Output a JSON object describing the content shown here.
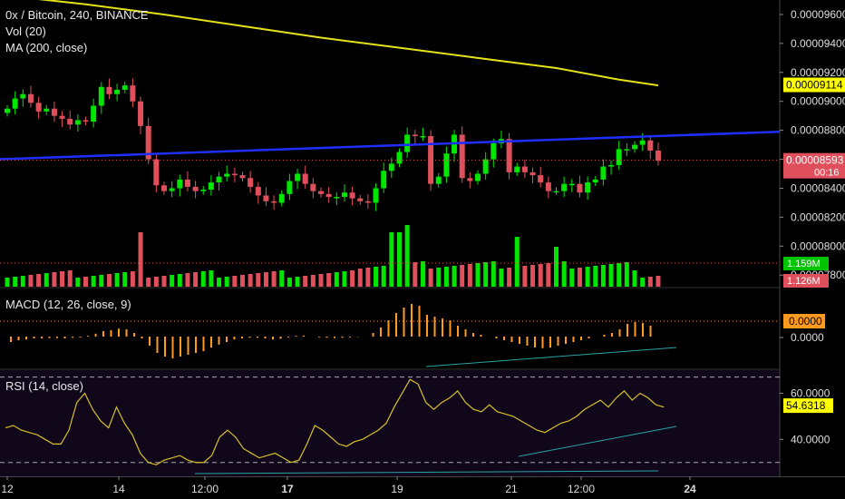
{
  "header": {
    "symbol_line": "0x / Bitcoin, 240, BINANCE",
    "vol_label": "Vol (20)",
    "ma_label": "MA (200, close)"
  },
  "macd_label": "MACD (12, 26, close, 9)",
  "rsi_label": "RSI (14, close)",
  "colors": {
    "up": "#00e600",
    "down": "#e0505c",
    "ma": "#e6e21a",
    "trendline": "#1f2fff",
    "macd_hist": "#ff9a1f",
    "rsi": "#d8c02a",
    "rsi_trend": "#29a3a3",
    "price_tag": "#e0505c",
    "ma_tag": "#ffff00",
    "macd_tag": "#ff9a1f",
    "rsi_tag": "#ffff00",
    "vol_up_tag": "#00c400",
    "vol_down_tag": "#e0505c"
  },
  "price_axis": {
    "ticks": [
      "0.00009600",
      "0.00009400",
      "0.00009200",
      "0.00009000",
      "0.00008800",
      "0.00008600",
      "0.00008400",
      "0.00008200",
      "0.00008000",
      "0.00007800"
    ],
    "ma_tag": "0.00009114",
    "last_price_tag": "0.00008593",
    "countdown": "00:16",
    "vol_tag_up": "1.159M",
    "vol_tag_down": "1.126M"
  },
  "macd_axis": {
    "ticks": [
      "0.0000"
    ],
    "value_tag": "0.0000"
  },
  "rsi_axis": {
    "ticks": [
      "60.0000",
      "40.0000"
    ],
    "value_tag": "54.6318"
  },
  "time_axis": {
    "labels": [
      "12",
      "14",
      "12:00",
      "17",
      "19",
      "21",
      "12:00",
      "24"
    ]
  },
  "chart_data": {
    "type": "candlestick",
    "panes": [
      "price_volume",
      "macd",
      "rsi"
    ],
    "symbol": "0x / Bitcoin",
    "interval": "240",
    "exchange": "BINANCE",
    "x_labels": [
      "12",
      "14",
      "12:00",
      "17",
      "19",
      "21",
      "12:00",
      "24"
    ],
    "price_ylim": [
      7.72e-05,
      9.7e-05
    ],
    "close_series_approx": [
      8.95e-05,
      9.02e-05,
      9.05e-05,
      8.99e-05,
      8.93e-05,
      8.95e-05,
      8.9e-05,
      8.88e-05,
      8.84e-05,
      8.87e-05,
      8.86e-05,
      8.97e-05,
      9.1e-05,
      9.05e-05,
      9.08e-05,
      9.11e-05,
      9e-05,
      8.83e-05,
      8.6e-05,
      8.42e-05,
      8.38e-05,
      8.4e-05,
      8.46e-05,
      8.41e-05,
      8.38e-05,
      8.39e-05,
      8.44e-05,
      8.48e-05,
      8.5e-05,
      8.49e-05,
      8.47e-05,
      8.41e-05,
      8.35e-05,
      8.31e-05,
      8.3e-05,
      8.36e-05,
      8.45e-05,
      8.5e-05,
      8.43e-05,
      8.38e-05,
      8.36e-05,
      8.34e-05,
      8.34e-05,
      8.37e-05,
      8.33e-05,
      8.31e-05,
      8.3e-05,
      8.4e-05,
      8.52e-05,
      8.57e-05,
      8.65e-05,
      8.77e-05,
      8.76e-05,
      8.76e-05,
      8.43e-05,
      8.48e-05,
      8.64e-05,
      8.77e-05,
      8.47e-05,
      8.45e-05,
      8.5e-05,
      8.6e-05,
      8.71e-05,
      8.74e-05,
      8.51e-05,
      8.55e-05,
      8.51e-05,
      8.49e-05,
      8.44e-05,
      8.38e-05,
      8.38e-05,
      8.43e-05,
      8.43e-05,
      8.37e-05,
      8.44e-05,
      8.46e-05,
      8.55e-05,
      8.56e-05,
      8.67e-05,
      8.67e-05,
      8.7e-05,
      8.73e-05,
      8.66e-05,
      8.59e-05
    ],
    "volume_ylim": [
      0,
      1900000
    ],
    "volume_last": 1159000,
    "ma200_approx": [
      {
        "x": 0,
        "y": 9.73e-05
      },
      {
        "x": 10,
        "y": 9.67e-05
      },
      {
        "x": 20,
        "y": 9.6e-05
      },
      {
        "x": 30,
        "y": 9.52e-05
      },
      {
        "x": 40,
        "y": 9.44e-05
      },
      {
        "x": 50,
        "y": 9.37e-05
      },
      {
        "x": 60,
        "y": 9.3e-05
      },
      {
        "x": 70,
        "y": 9.23e-05
      },
      {
        "x": 78,
        "y": 9.15e-05
      },
      {
        "x": 83,
        "y": 9.11e-05
      }
    ],
    "trendline": {
      "x0": 0,
      "y0": 8.6e-05,
      "x1": 94,
      "y1": 8.79e-05
    },
    "macd_hist_approx": [
      -0.15,
      -0.1,
      -0.08,
      -0.05,
      -0.05,
      -0.04,
      -0.04,
      -0.05,
      -0.03,
      -0.02,
      0.02,
      0.08,
      0.15,
      0.18,
      0.22,
      0.2,
      0.1,
      -0.05,
      -0.25,
      -0.45,
      -0.55,
      -0.6,
      -0.55,
      -0.5,
      -0.45,
      -0.4,
      -0.3,
      -0.22,
      -0.15,
      -0.08,
      -0.05,
      -0.03,
      -0.03,
      -0.05,
      -0.08,
      -0.06,
      -0.02,
      0.02,
      0.03,
      0.0,
      -0.02,
      -0.03,
      -0.04,
      -0.03,
      -0.02,
      -0.01,
      0.0,
      0.1,
      0.25,
      0.45,
      0.65,
      0.8,
      0.9,
      0.85,
      0.6,
      0.55,
      0.5,
      0.45,
      0.3,
      0.2,
      0.1,
      0.05,
      0.0,
      -0.05,
      -0.1,
      -0.15,
      -0.2,
      -0.25,
      -0.3,
      -0.32,
      -0.3,
      -0.25,
      -0.2,
      -0.15,
      -0.1,
      -0.05,
      0.0,
      0.05,
      0.1,
      0.2,
      0.35,
      0.4,
      0.38,
      0.3
    ],
    "rsi_ylim": [
      24,
      70
    ],
    "rsi_upper": 67,
    "rsi_lower": 30,
    "rsi_approx": [
      45,
      46,
      44,
      43,
      42,
      40,
      38,
      38,
      44,
      56,
      60,
      53,
      48,
      45,
      54,
      47,
      42,
      34,
      30,
      29,
      31,
      32,
      33,
      31,
      30,
      30,
      33,
      41,
      44,
      41,
      36,
      34,
      32,
      33,
      34,
      32,
      30,
      31,
      38,
      46,
      44,
      41,
      38,
      37,
      39,
      40,
      42,
      44,
      47,
      54,
      60,
      66,
      64,
      56,
      53,
      56,
      58,
      61,
      56,
      53,
      52,
      55,
      52,
      51,
      50,
      48,
      46,
      44,
      43,
      45,
      47,
      48,
      50,
      53,
      55,
      57,
      54,
      58,
      61,
      57,
      60,
      58,
      55,
      54
    ]
  }
}
